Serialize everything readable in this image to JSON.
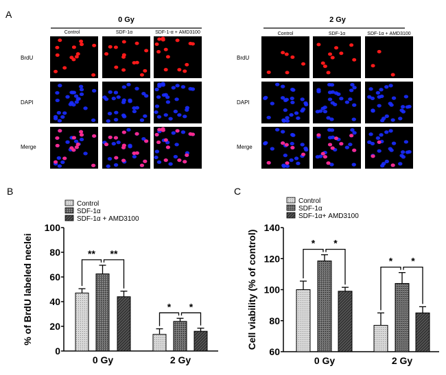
{
  "panel_a": {
    "letter": "A",
    "groups": [
      {
        "title": "0 Gy",
        "columns": [
          "Control",
          "SDF-1α",
          "SDF-1-α + AMD3100"
        ]
      },
      {
        "title": "2 Gy",
        "columns": [
          "Control",
          "SDF-1α",
          "SDF-1α + AMD3100"
        ]
      }
    ],
    "rows": [
      "BrdU",
      "DAPI",
      "Merge"
    ],
    "colors": {
      "brdu": "#ff1a1a",
      "dapi": "#1a2cff",
      "merge": "#ff2a8a"
    }
  },
  "chart_data": [
    {
      "panel": "B",
      "type": "bar",
      "ylabel": "% of BrdU labeled neclei",
      "categories": [
        "0 Gy",
        "2 Gy"
      ],
      "ylim": [
        0,
        100
      ],
      "yticks": [
        "0",
        "20",
        "40",
        "60",
        "80",
        "100"
      ],
      "legend": "top-left",
      "series": [
        {
          "name": "Control",
          "values": [
            47,
            13.5
          ],
          "errors": [
            3.5,
            4.5
          ],
          "fill": "dotted-light-gray"
        },
        {
          "name": "SDF-1α",
          "values": [
            62.5,
            24
          ],
          "errors": [
            7,
            2.5
          ],
          "fill": "crosshatch-dark-gray"
        },
        {
          "name": "SDF-1α + AMD3100",
          "values": [
            44,
            16
          ],
          "errors": [
            4.5,
            2.5
          ],
          "fill": "diagonal-dark-gray"
        }
      ],
      "significance": [
        {
          "category": "0 Gy",
          "labels": [
            "**",
            "**"
          ]
        },
        {
          "category": "2 Gy",
          "labels": [
            "*",
            "*"
          ]
        }
      ]
    },
    {
      "panel": "C",
      "type": "bar",
      "ylabel": "Cell viability (% of control)",
      "categories": [
        "0 Gy",
        "2 Gy"
      ],
      "ylim": [
        60,
        140
      ],
      "yticks": [
        "60",
        "80",
        "100",
        "120",
        "140"
      ],
      "legend": "top-left",
      "series": [
        {
          "name": "Control",
          "values": [
            100,
            77
          ],
          "errors": [
            5.5,
            8
          ],
          "fill": "dotted-light-gray"
        },
        {
          "name": "SDF-1α",
          "values": [
            118.5,
            104
          ],
          "errors": [
            4,
            7
          ],
          "fill": "crosshatch-dark-gray"
        },
        {
          "name": "SDF-1α+ AMD3100",
          "values": [
            99,
            85
          ],
          "errors": [
            2.5,
            4
          ],
          "fill": "diagonal-dark-gray"
        }
      ],
      "significance": [
        {
          "category": "0 Gy",
          "labels": [
            "*",
            "*"
          ]
        },
        {
          "category": "2 Gy",
          "labels": [
            "*",
            "*"
          ]
        }
      ]
    }
  ]
}
